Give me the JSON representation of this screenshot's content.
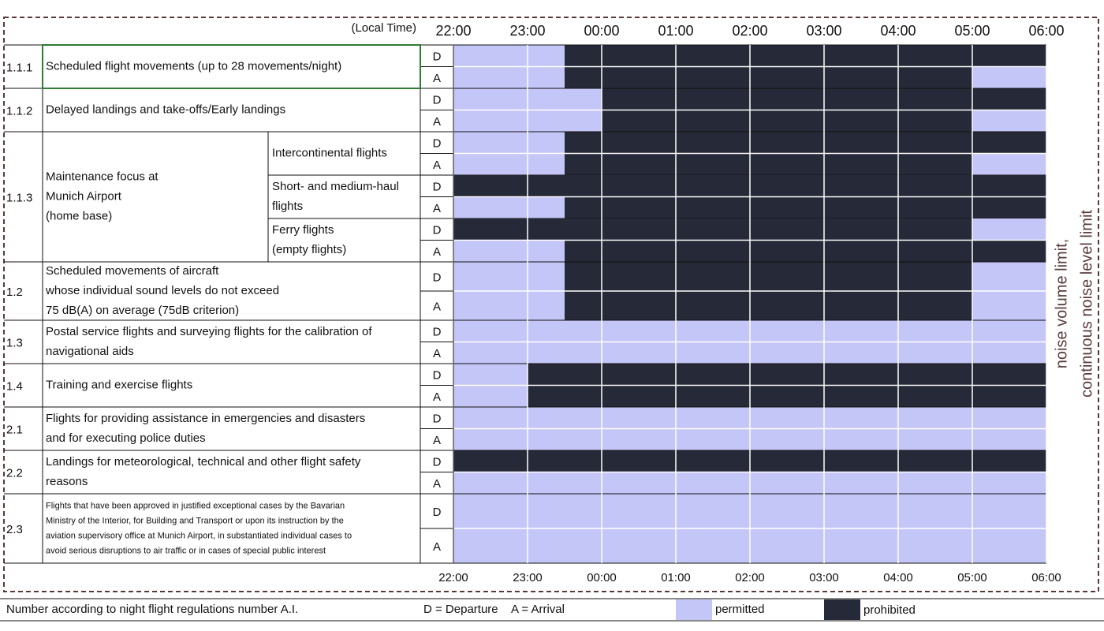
{
  "header": {
    "time_label": "(Local Time)"
  },
  "axis": {
    "lim": [
      22,
      30
    ],
    "ticks": [
      {
        "value": 22,
        "label": "22:00"
      },
      {
        "value": 23,
        "label": "23:00"
      },
      {
        "value": 24,
        "label": "00:00"
      },
      {
        "value": 25,
        "label": "01:00"
      },
      {
        "value": 26,
        "label": "02:00"
      },
      {
        "value": 27,
        "label": "03:00"
      },
      {
        "value": 28,
        "label": "04:00"
      },
      {
        "value": 29,
        "label": "05:00"
      },
      {
        "value": 30,
        "label": "06:00"
      }
    ]
  },
  "colors": {
    "permitted": "#c5c6f8",
    "prohibited": "#262938"
  },
  "side_label": [
    "noise volume limit,",
    "continuous noise level limit"
  ],
  "rows": [
    {
      "number": "1.1.1",
      "label": [
        "Scheduled flight movements (up to 28 movements/night)"
      ],
      "parts": [
        {
          "lines": [
            {
              "code": "D",
              "prohibited": [
                [
                  23.5,
                  30
                ]
              ]
            },
            {
              "code": "A",
              "prohibited": [
                [
                  23.5,
                  29
                ]
              ]
            }
          ]
        }
      ]
    },
    {
      "number": "1.1.2",
      "label": [
        "Delayed landings and take-offs/Early landings"
      ],
      "parts": [
        {
          "lines": [
            {
              "code": "D",
              "prohibited": [
                [
                  24,
                  30
                ]
              ]
            },
            {
              "code": "A",
              "prohibited": [
                [
                  24,
                  29
                ]
              ]
            }
          ]
        }
      ]
    },
    {
      "number": "1.1.3",
      "label": [
        "Maintenance focus at",
        "Munich Airport",
        "(home base)"
      ],
      "parts": [
        {
          "label": [
            "Intercontinental flights"
          ],
          "lines": [
            {
              "code": "D",
              "prohibited": [
                [
                  23.5,
                  30
                ]
              ]
            },
            {
              "code": "A",
              "prohibited": [
                [
                  23.5,
                  29
                ]
              ]
            }
          ]
        },
        {
          "label": [
            "Short- and medium-haul",
            "flights"
          ],
          "lines": [
            {
              "code": "D",
              "prohibited": [
                [
                  22,
                  30
                ]
              ]
            },
            {
              "code": "A",
              "prohibited": [
                [
                  23.5,
                  30
                ]
              ]
            }
          ]
        },
        {
          "label": [
            "Ferry flights",
            "(empty flights)"
          ],
          "lines": [
            {
              "code": "D",
              "prohibited": [
                [
                  22,
                  29
                ]
              ]
            },
            {
              "code": "A",
              "prohibited": [
                [
                  23.5,
                  30
                ]
              ]
            }
          ]
        }
      ]
    },
    {
      "number": "1.2",
      "label": [
        "Scheduled movements of aircraft",
        "whose individual sound levels do not exceed",
        "75 dB(A) on average (75dB criterion)"
      ],
      "parts": [
        {
          "lines": [
            {
              "code": "D",
              "prohibited": [
                [
                  23.5,
                  29
                ]
              ]
            },
            {
              "code": "A",
              "prohibited": [
                [
                  23.5,
                  29
                ]
              ]
            }
          ]
        }
      ]
    },
    {
      "number": "1.3",
      "label": [
        "Postal service flights and surveying flights for the calibration of",
        "navigational aids"
      ],
      "parts": [
        {
          "lines": [
            {
              "code": "D",
              "prohibited": []
            },
            {
              "code": "A",
              "prohibited": []
            }
          ]
        }
      ]
    },
    {
      "number": "1.4",
      "label": [
        "Training and exercise flights"
      ],
      "parts": [
        {
          "lines": [
            {
              "code": "D",
              "prohibited": [
                [
                  23,
                  30
                ]
              ]
            },
            {
              "code": "A",
              "prohibited": [
                [
                  23,
                  30
                ]
              ]
            }
          ]
        }
      ]
    },
    {
      "number": "2.1",
      "label": [
        "Flights for providing assistance in emergencies and disasters",
        "and for executing police duties"
      ],
      "parts": [
        {
          "lines": [
            {
              "code": "D",
              "prohibited": []
            },
            {
              "code": "A",
              "prohibited": []
            }
          ]
        }
      ]
    },
    {
      "number": "2.2",
      "label": [
        "Landings for meteorological, technical and other flight safety",
        "reasons"
      ],
      "parts": [
        {
          "lines": [
            {
              "code": "D",
              "prohibited": [
                [
                  22,
                  30
                ]
              ]
            },
            {
              "code": "A",
              "prohibited": []
            }
          ]
        }
      ]
    },
    {
      "number": "2.3",
      "label": [
        "Flights that have been approved in justified exceptional cases by the Bavarian",
        "Ministry of the Interior, for Building and Transport or upon its instruction by the",
        "aviation supervisory office at Munich Airport, in substantiated individual cases to",
        "avoid serious disruptions to air traffic or in cases of special public interest"
      ],
      "parts": [
        {
          "lines": [
            {
              "code": "D",
              "prohibited": []
            },
            {
              "code": "A",
              "prohibited": []
            }
          ]
        }
      ]
    }
  ],
  "legend": {
    "note": "Number according to night flight regulations number A.I.",
    "departure": "D = Departure",
    "arrival": "A = Arrival",
    "permitted": "permitted",
    "prohibited": "prohibited"
  }
}
